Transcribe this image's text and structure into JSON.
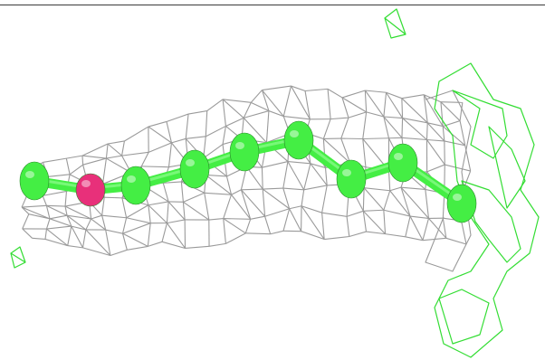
{
  "scene": {
    "background": "#ffffff",
    "colors": {
      "density_mesh": "#9a9a9a",
      "difference_mesh_positive": "#33dd33",
      "carbon_atom": "#44ee44",
      "bond": "#44ee44",
      "highlight_atom": "#e8307a"
    },
    "icons": {
      "difference-density": "green-wire-mesh",
      "electron-density": "grey-wire-mesh",
      "ligand": "ball-and-stick-chain"
    }
  }
}
